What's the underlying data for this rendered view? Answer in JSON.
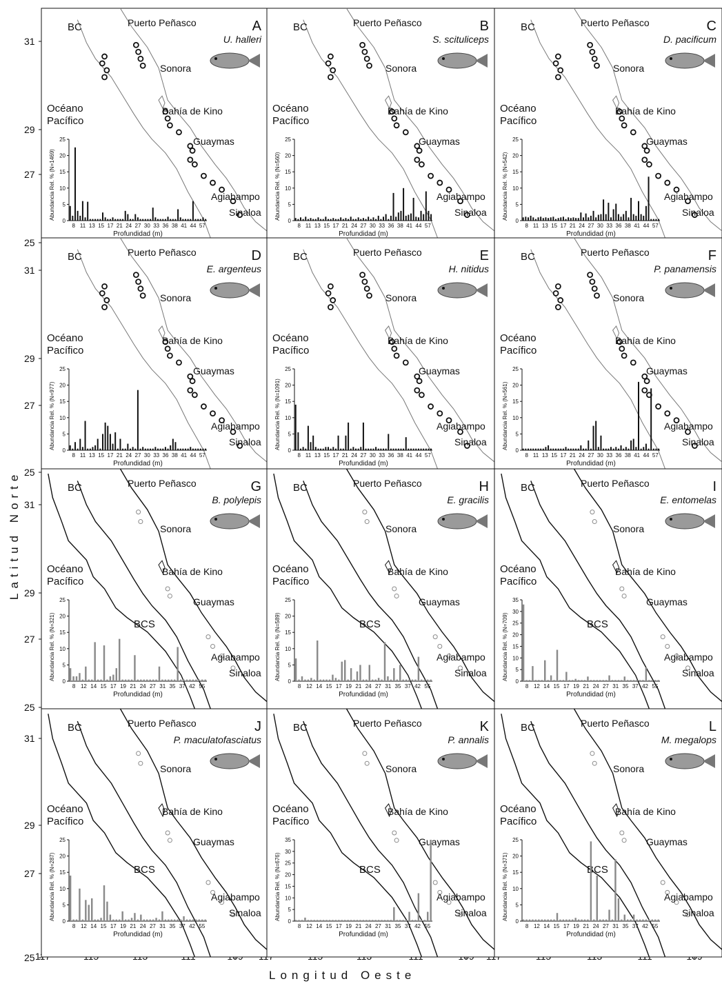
{
  "figure": {
    "y_axis_title": "Latitud Norte",
    "x_axis_title": "Longitud Oeste",
    "lat_ticks": [
      "31",
      "29",
      "27",
      "25"
    ],
    "lon_ticks": [
      "117",
      "115",
      "113",
      "111",
      "109"
    ]
  },
  "labels_common": {
    "bc": "BC",
    "bcs": "BCS",
    "oceano": "Océano",
    "pacifico": "Pacífico",
    "puerto_penasco": "Puerto Peñasco",
    "sonora": "Sonora",
    "bahia_kino": "Bahía de Kino",
    "guaymas": "Guaymas",
    "agiabampo": "Agiabampo",
    "sinaloa": "Sinaloa",
    "hist_xlabel": "Profundidad (m)"
  },
  "colors": {
    "black": "#111111",
    "gray": "#8a8a8a",
    "coast_light": "#777777",
    "coast_dark": "#111111"
  },
  "panels": [
    {
      "letter": "A",
      "species": "U. halleri",
      "ylabel": "Abundancia Rel. % (N=1469)",
      "yticks": [
        0,
        5,
        10,
        15,
        20,
        25
      ],
      "xticks": [
        "8",
        "11",
        "13",
        "15",
        "17",
        "21",
        "24",
        "27",
        "30",
        "33",
        "36",
        "38",
        "41",
        "44",
        "57"
      ],
      "bar_color": "black",
      "fish_icon": "stingray-icon",
      "map_style": "dark-points",
      "row": 0,
      "col": 0
    },
    {
      "letter": "B",
      "species": "S. scituliceps",
      "ylabel": "Abundancia Rel. % (N=560)",
      "yticks": [
        0,
        5,
        10,
        15,
        20,
        25
      ],
      "xticks": [
        "8",
        "11",
        "13",
        "15",
        "17",
        "21",
        "24",
        "27",
        "30",
        "33",
        "36",
        "38",
        "41",
        "44",
        "57"
      ],
      "bar_color": "black",
      "fish_icon": "lizardfish-icon",
      "map_style": "dark-points",
      "row": 0,
      "col": 1
    },
    {
      "letter": "C",
      "species": "D. pacificum",
      "ylabel": "Abundancia Rel. % (N=542)",
      "yticks": [
        0,
        5,
        10,
        15,
        20,
        25
      ],
      "xticks": [
        "8",
        "11",
        "13",
        "15",
        "17",
        "21",
        "24",
        "27",
        "30",
        "33",
        "36",
        "38",
        "41",
        "44",
        "57"
      ],
      "bar_color": "black",
      "fish_icon": "sea-bass-icon",
      "map_style": "dark-points",
      "row": 0,
      "col": 2
    },
    {
      "letter": "D",
      "species": "E. argenteus",
      "ylabel": "Abundancia Rel. % (N=977)",
      "yticks": [
        0,
        5,
        10,
        15,
        20,
        25
      ],
      "xticks": [
        "8",
        "11",
        "13",
        "15",
        "17",
        "21",
        "24",
        "27",
        "30",
        "33",
        "36",
        "38",
        "41",
        "44",
        "57"
      ],
      "bar_color": "black",
      "fish_icon": "mojarra-icon",
      "map_style": "dark-points",
      "row": 1,
      "col": 0
    },
    {
      "letter": "E",
      "species": "H. nitidus",
      "ylabel": "Abundancia Rel. % (N=1091)",
      "yticks": [
        0,
        5,
        10,
        15,
        20,
        25
      ],
      "xticks": [
        "8",
        "11",
        "13",
        "15",
        "17",
        "21",
        "24",
        "27",
        "30",
        "33",
        "36",
        "38",
        "41",
        "44",
        "57"
      ],
      "bar_color": "black",
      "fish_icon": "grunt-icon",
      "map_style": "dark-points",
      "row": 1,
      "col": 1
    },
    {
      "letter": "F",
      "species": "P. panamensis",
      "ylabel": "Abundancia Rel. % (N=561)",
      "yticks": [
        0,
        5,
        10,
        15,
        20,
        25
      ],
      "xticks": [
        "8",
        "11",
        "13",
        "15",
        "17",
        "21",
        "24",
        "27",
        "30",
        "33",
        "36",
        "38",
        "41",
        "44",
        "57"
      ],
      "bar_color": "black",
      "fish_icon": "grunt-striped-icon",
      "map_style": "dark-points",
      "row": 1,
      "col": 2
    },
    {
      "letter": "G",
      "species": "B. polylepis",
      "ylabel": "Abundancia Rel. % (N=321)",
      "yticks": [
        0,
        5,
        10,
        15,
        20,
        25
      ],
      "xticks": [
        "8",
        "12",
        "14",
        "15",
        "17",
        "19",
        "21",
        "24",
        "27",
        "31",
        "35",
        "37",
        "42",
        "55"
      ],
      "bar_color": "gray",
      "fish_icon": "triggerfish-icon",
      "map_style": "light-points",
      "row": 2,
      "col": 0
    },
    {
      "letter": "H",
      "species": "E. gracilis",
      "ylabel": "Abundancia Rel. % (N=589)",
      "yticks": [
        0,
        5,
        10,
        15,
        20,
        25
      ],
      "xticks": [
        "8",
        "12",
        "14",
        "15",
        "17",
        "19",
        "21",
        "24",
        "27",
        "31",
        "35",
        "37",
        "42",
        "55"
      ],
      "bar_color": "gray",
      "fish_icon": "lizardfish-spotted-icon",
      "map_style": "light-points",
      "row": 2,
      "col": 1
    },
    {
      "letter": "I",
      "species": "E. entomelas",
      "ylabel": "Abundancia Rel. % (N=709)",
      "yticks": [
        0,
        5,
        10,
        15,
        20,
        25,
        30,
        35
      ],
      "xticks": [
        "8",
        "12",
        "14",
        "15",
        "17",
        "19",
        "21",
        "24",
        "27",
        "31",
        "35",
        "37",
        "42",
        "55"
      ],
      "bar_color": "gray",
      "fish_icon": "mojarra-small-icon",
      "map_style": "light-points",
      "row": 2,
      "col": 2
    },
    {
      "letter": "J",
      "species": "P. maculatofasciatus",
      "ylabel": "Abundancia Rel. % (N=287)",
      "yticks": [
        0,
        5,
        10,
        15,
        20,
        25
      ],
      "xticks": [
        "8",
        "12",
        "14",
        "15",
        "17",
        "19",
        "21",
        "24",
        "27",
        "31",
        "35",
        "37",
        "42",
        "55"
      ],
      "bar_color": "gray",
      "fish_icon": "spotted-bass-icon",
      "map_style": "light-points",
      "row": 3,
      "col": 0
    },
    {
      "letter": "K",
      "species": "P. annalis",
      "ylabel": "Abundancia Rel. % (N=676)",
      "yticks": [
        0,
        5,
        10,
        15,
        20,
        25,
        30,
        35
      ],
      "xticks": [
        "8",
        "12",
        "14",
        "15",
        "17",
        "19",
        "21",
        "24",
        "27",
        "31",
        "35",
        "37",
        "42",
        "55"
      ],
      "bar_color": "gray",
      "fish_icon": "toadfish-icon",
      "map_style": "light-points",
      "row": 3,
      "col": 1
    },
    {
      "letter": "L",
      "species": "M. megalops",
      "ylabel": "Abundancia Rel. % (N=371)",
      "yticks": [
        0,
        5,
        10,
        15,
        20,
        25
      ],
      "xticks": [
        "8",
        "12",
        "14",
        "15",
        "17",
        "19",
        "21",
        "24",
        "27",
        "31",
        "35",
        "37",
        "42",
        "55"
      ],
      "bar_color": "gray",
      "fish_icon": "croaker-icon",
      "map_style": "light-points",
      "row": 3,
      "col": 2
    }
  ],
  "chart_data": [
    {
      "type": "bar",
      "panel": "A",
      "title": "U. halleri",
      "xlabel": "Profundidad (m)",
      "ylabel": "Abundancia Rel. % (N=1469)",
      "ylim": [
        0,
        25
      ],
      "values": [
        4.5,
        1.5,
        22.5,
        3,
        1.5,
        6,
        1,
        5.8,
        0.5,
        0.5,
        0.5,
        0.5,
        0.5,
        2.5,
        1,
        0.5,
        0.5,
        1,
        0.5,
        0.5,
        0.5,
        0.5,
        3,
        2,
        0.5,
        0.5,
        2,
        1,
        0.5,
        0.5,
        0.5,
        0.5,
        0.5,
        4,
        1,
        0.5,
        0.5,
        0.5,
        0.5,
        1.2,
        0.5,
        0.5,
        0.5,
        3.5,
        1,
        0.5,
        0.5,
        0.5,
        0.5,
        6,
        0.5,
        0.5,
        0.5,
        1,
        0.5
      ]
    },
    {
      "type": "bar",
      "panel": "B",
      "title": "S. scituliceps",
      "xlabel": "Profundidad (m)",
      "ylabel": "Abundancia Rel. % (N=560)",
      "ylim": [
        0,
        25
      ],
      "values": [
        0.8,
        0.5,
        1,
        0.5,
        1.2,
        0.5,
        0.8,
        0.5,
        0.5,
        1,
        0.5,
        0.5,
        1.2,
        0.5,
        0.5,
        0.8,
        0.5,
        0.5,
        1,
        0.5,
        0.8,
        0.5,
        1.2,
        0.5,
        0.5,
        1,
        0.5,
        0.8,
        0.5,
        1.2,
        0.5,
        1,
        0.5,
        1.5,
        0.5,
        1.2,
        2,
        0.5,
        1.5,
        8.5,
        1.2,
        2.5,
        3,
        10,
        1.5,
        1.8,
        2.2,
        7,
        1.2,
        1,
        3,
        2,
        9,
        3,
        2
      ]
    },
    {
      "type": "bar",
      "panel": "C",
      "title": "D. pacificum",
      "xlabel": "Profundidad (m)",
      "ylabel": "Abundancia Rel. % (N=542)",
      "ylim": [
        0,
        25
      ],
      "values": [
        1,
        1.2,
        1,
        1.5,
        1,
        0.5,
        1,
        1.2,
        0.8,
        1,
        0.8,
        1,
        1.2,
        0.5,
        0.8,
        1,
        1.2,
        0.5,
        1,
        0.8,
        1,
        0.8,
        0.8,
        2.5,
        1,
        2.2,
        1,
        1.5,
        3,
        1,
        1.8,
        2,
        6.5,
        2,
        5.5,
        1,
        3.5,
        5.2,
        2,
        1.2,
        2,
        3,
        1,
        7,
        2,
        1.5,
        6,
        2,
        1.5,
        4.5,
        13.5,
        0.5,
        0.5,
        0.5,
        0.5
      ]
    },
    {
      "type": "bar",
      "panel": "D",
      "title": "E. argenteus",
      "xlabel": "Profundidad (m)",
      "ylabel": "Abundancia Rel. % (N=977)",
      "ylim": [
        0,
        25
      ],
      "values": [
        1.5,
        0.5,
        2.5,
        0.5,
        3.5,
        1,
        9,
        0.5,
        0.5,
        1,
        1.5,
        3.5,
        0.5,
        5,
        8.5,
        7.5,
        5,
        2,
        5.5,
        0.5,
        3.5,
        0.5,
        0.5,
        2,
        0.5,
        1,
        0.5,
        18.5,
        0.5,
        1,
        0.5,
        0.5,
        0.5,
        0.5,
        1,
        0.5,
        0.5,
        0.5,
        1,
        0.5,
        1.5,
        3.5,
        2.5,
        0.5,
        0.5,
        0.5,
        0.5,
        0.5,
        1,
        0.5,
        0.5,
        0.5,
        0.5,
        0.5,
        0.5
      ]
    },
    {
      "type": "bar",
      "panel": "E",
      "title": "H. nitidus",
      "xlabel": "Profundidad (m)",
      "ylabel": "Abundancia Rel. % (N=1091)",
      "ylim": [
        0,
        25
      ],
      "values": [
        14,
        5.5,
        0.5,
        1,
        0.5,
        7.5,
        2.5,
        4.5,
        1,
        0.5,
        0.5,
        0.5,
        1,
        1,
        0.5,
        1,
        0.5,
        4.5,
        0.5,
        0.5,
        4.5,
        8.5,
        0.5,
        1,
        0.5,
        0.5,
        1,
        8.5,
        0.5,
        0.5,
        0.5,
        0.5,
        1,
        0.5,
        0.5,
        0.5,
        0.5,
        5,
        0.5,
        0.5,
        0.5,
        0.5,
        0.5,
        0.5,
        4,
        0.5,
        0.5,
        0.5,
        0.5,
        0.5,
        0.5,
        0.5,
        0.5,
        0.5,
        0.5
      ]
    },
    {
      "type": "bar",
      "panel": "F",
      "title": "P. panamensis",
      "xlabel": "Profundidad (m)",
      "ylabel": "Abundancia Rel. % (N=561)",
      "ylim": [
        0,
        25
      ],
      "values": [
        0.5,
        0.5,
        0.5,
        0.5,
        0.5,
        0.5,
        0.5,
        0.5,
        0.5,
        1,
        1.5,
        0.5,
        0.5,
        0.5,
        0.5,
        0.5,
        0.5,
        1,
        0.5,
        0.5,
        0.5,
        0.5,
        0.5,
        1.5,
        0.5,
        0.5,
        3,
        0.5,
        7.5,
        9,
        1,
        4.5,
        0.5,
        0.5,
        0.5,
        1,
        0.5,
        1,
        0.5,
        1.5,
        0.5,
        1,
        0.5,
        3,
        3.5,
        1,
        21,
        0.5,
        1,
        2,
        0.5,
        19,
        0.5,
        0.5,
        0.5
      ]
    },
    {
      "type": "bar",
      "panel": "G",
      "title": "B. polylepis",
      "xlabel": "Profundidad (m)",
      "ylabel": "Abundancia Rel. % (N=321)",
      "ylim": [
        0,
        25
      ],
      "values": [
        4,
        1.5,
        1.5,
        2.5,
        0.5,
        4.5,
        0.5,
        0.5,
        12,
        0.5,
        0.5,
        11,
        0.5,
        1.5,
        2,
        4,
        13,
        0.5,
        0.5,
        0.5,
        0.5,
        8,
        0.5,
        0.5,
        0.5,
        0.5,
        0.5,
        0.5,
        0.5,
        4.5,
        0.5,
        0.5,
        0.5,
        0.5,
        0.5,
        10.5,
        0.5,
        0.5,
        0.5,
        0.5,
        0.5,
        0.5,
        0.5,
        0.5,
        0.5
      ]
    },
    {
      "type": "bar",
      "panel": "H",
      "title": "E. gracilis",
      "xlabel": "Profundidad (m)",
      "ylabel": "Abundancia Rel. % (N=589)",
      "ylim": [
        0,
        25
      ],
      "values": [
        7,
        0.5,
        1.5,
        0.5,
        0.5,
        1,
        0.5,
        12.5,
        0.5,
        0.5,
        0.5,
        0.5,
        2,
        1,
        0.5,
        6,
        6.5,
        0.5,
        4,
        0.5,
        3,
        5,
        0.5,
        0.5,
        5,
        0.5,
        0.5,
        1,
        0.5,
        12,
        1.5,
        0.5,
        4,
        0.5,
        5,
        0.5,
        0.5,
        0.5,
        0.5,
        0.5,
        7.5,
        0.5,
        0.5,
        0.5,
        0.5
      ]
    },
    {
      "type": "bar",
      "panel": "I",
      "title": "E. entomelas",
      "xlabel": "Profundidad (m)",
      "ylabel": "Abundancia Rel. % (N=709)",
      "ylim": [
        0,
        35
      ],
      "values": [
        33,
        0.5,
        0.5,
        6.5,
        0.5,
        0.5,
        0.5,
        9,
        0.5,
        2.5,
        0.5,
        13.5,
        0.5,
        0.5,
        4,
        0.5,
        0.5,
        1,
        0.5,
        0.5,
        0.5,
        2,
        0.5,
        0.5,
        0.5,
        0.5,
        0.5,
        0.5,
        2.5,
        0.5,
        0.5,
        0.5,
        0.5,
        2,
        0.5,
        0.5,
        0.5,
        0.5,
        0.5,
        0.5,
        6,
        0.5,
        0.5,
        0.5,
        0.5
      ]
    },
    {
      "type": "bar",
      "panel": "J",
      "title": "P. maculatofasciatus",
      "xlabel": "Profundidad (m)",
      "ylabel": "Abundancia Rel. % (N=287)",
      "ylim": [
        0,
        25
      ],
      "values": [
        14,
        0.5,
        0.5,
        10,
        0.5,
        6.5,
        5,
        7,
        0.5,
        0.5,
        1,
        11,
        6,
        2,
        0.5,
        0.5,
        0.5,
        3,
        0.5,
        0.5,
        1,
        2.5,
        0.5,
        2,
        0.5,
        0.5,
        0.5,
        0.5,
        1,
        0.5,
        3,
        0.5,
        0.5,
        0.5,
        0.5,
        0.5,
        0.5,
        1.5,
        0.5,
        0.5,
        0.5,
        0.5,
        0.5,
        0.5,
        0.5
      ]
    },
    {
      "type": "bar",
      "panel": "K",
      "title": "P. annalis",
      "xlabel": "Profundidad (m)",
      "ylabel": "Abundancia Rel. % (N=676)",
      "ylim": [
        0,
        35
      ],
      "values": [
        0.5,
        0.5,
        0.5,
        1.5,
        0.5,
        0.5,
        0.5,
        0.5,
        0.5,
        0.5,
        0.5,
        0.5,
        0.5,
        0.5,
        0.5,
        0.5,
        0.5,
        0.5,
        0.5,
        0.5,
        0.5,
        0.5,
        0.5,
        0.5,
        0.5,
        0.5,
        0.5,
        0.5,
        0.5,
        0.5,
        0.5,
        0.5,
        6,
        0.5,
        0.5,
        0.5,
        0.5,
        4,
        0.5,
        0.5,
        12,
        0.5,
        0.5,
        4,
        35
      ]
    },
    {
      "type": "bar",
      "panel": "L",
      "title": "M. megalops",
      "xlabel": "Profundidad (m)",
      "ylabel": "Abundancia Rel. % (N=371)",
      "ylim": [
        0,
        25
      ],
      "values": [
        0.5,
        0.5,
        0.5,
        0.5,
        0.5,
        0.5,
        0.5,
        0.5,
        0.5,
        0.5,
        0.5,
        2.5,
        0.5,
        0.5,
        0.5,
        0.5,
        0.5,
        1,
        0.5,
        0.5,
        0.5,
        0.5,
        24.5,
        0.5,
        14,
        0.5,
        0.5,
        0.5,
        3.5,
        0.5,
        19,
        7,
        0.5,
        2,
        0.5,
        0.5,
        2,
        0.5,
        0.5,
        0.5,
        0.5,
        0.5,
        0.5,
        0.5,
        0.5
      ]
    }
  ]
}
